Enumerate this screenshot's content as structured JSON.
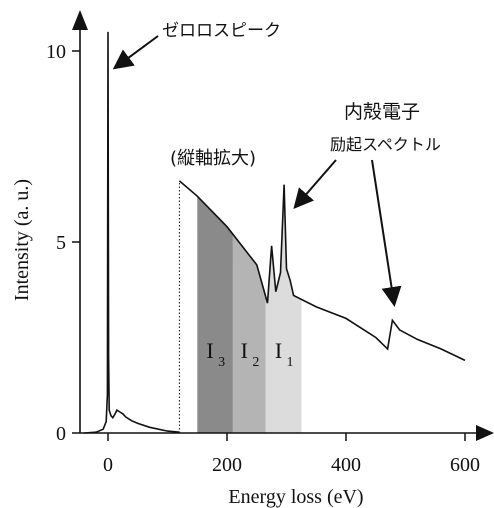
{
  "chart_data": {
    "type": "line",
    "title": "",
    "xlabel": "Energy loss (eV)",
    "ylabel": "Intensity (a. u.)",
    "xlim": [
      -40,
      620
    ],
    "ylim": [
      0,
      10.8
    ],
    "xticks": [
      0,
      200,
      400,
      600
    ],
    "yticks": [
      0,
      5,
      10
    ],
    "xtick_labels": [
      "0",
      "200",
      "400",
      "600"
    ],
    "ytick_labels": [
      "0",
      "5",
      "10"
    ],
    "grid": false,
    "legend": "none",
    "series": [
      {
        "x": [
          -40,
          -20,
          -8,
          -3,
          -1,
          0,
          1,
          2,
          5,
          8,
          12,
          15,
          20,
          25,
          30,
          40,
          50,
          70,
          100,
          120
        ],
        "y": [
          0.0,
          0.02,
          0.1,
          0.3,
          1.0,
          10.5,
          2.0,
          0.6,
          0.45,
          0.4,
          0.5,
          0.6,
          0.55,
          0.5,
          0.42,
          0.32,
          0.25,
          0.15,
          0.05,
          0.02
        ]
      },
      {
        "x": [
          120,
          150,
          200,
          250,
          268,
          275,
          282,
          290,
          296,
          300,
          306,
          312,
          350,
          400,
          450,
          470,
          478,
          490,
          520,
          560,
          600
        ],
        "y": [
          6.6,
          6.2,
          5.4,
          4.4,
          3.4,
          4.9,
          3.7,
          4.2,
          6.5,
          4.3,
          4.0,
          3.6,
          3.3,
          3.0,
          2.5,
          2.2,
          2.95,
          2.7,
          2.45,
          2.2,
          1.9
        ]
      }
    ],
    "magnified_start_x": 120,
    "colors": {
      "I3": "#8a8a8a",
      "I2": "#b4b4b4",
      "I1": "#dcdcdc",
      "line": "#111111"
    },
    "windows": [
      {
        "x0": 150,
        "x1": 210,
        "label": "I",
        "sub": "3"
      },
      {
        "x0": 210,
        "x1": 265,
        "label": "I",
        "sub": "2"
      },
      {
        "x0": 265,
        "x1": 325,
        "label": "I",
        "sub": "1"
      }
    ],
    "annotations": [
      {
        "text": "ゼロロスピーク",
        "target": [
          0,
          9.4
        ]
      },
      {
        "text": "(縦軸拡大)"
      },
      {
        "text": "内殻電子",
        "line2": "励起スペクトル",
        "targets": [
          [
            290,
            5.6
          ],
          [
            470,
            3.2
          ]
        ]
      }
    ]
  }
}
